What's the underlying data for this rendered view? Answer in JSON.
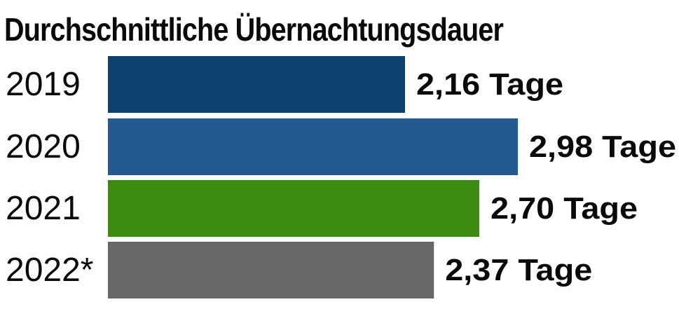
{
  "chart_data": {
    "type": "bar",
    "orientation": "horizontal",
    "title": "Durchschnittliche Übernachtungsdauer",
    "categories": [
      "2019",
      "2020",
      "2021",
      "2022*"
    ],
    "values": [
      2.16,
      2.98,
      2.7,
      2.37
    ],
    "value_labels": [
      "2,16 Tage",
      "2,98 Tage",
      "2,70 Tage",
      "2,37 Tage"
    ],
    "bar_colors": [
      "#0d4270",
      "#255a90",
      "#3c8c11",
      "#676767"
    ],
    "xlim": [
      0,
      2.98
    ],
    "grid": false,
    "legend": "none"
  }
}
